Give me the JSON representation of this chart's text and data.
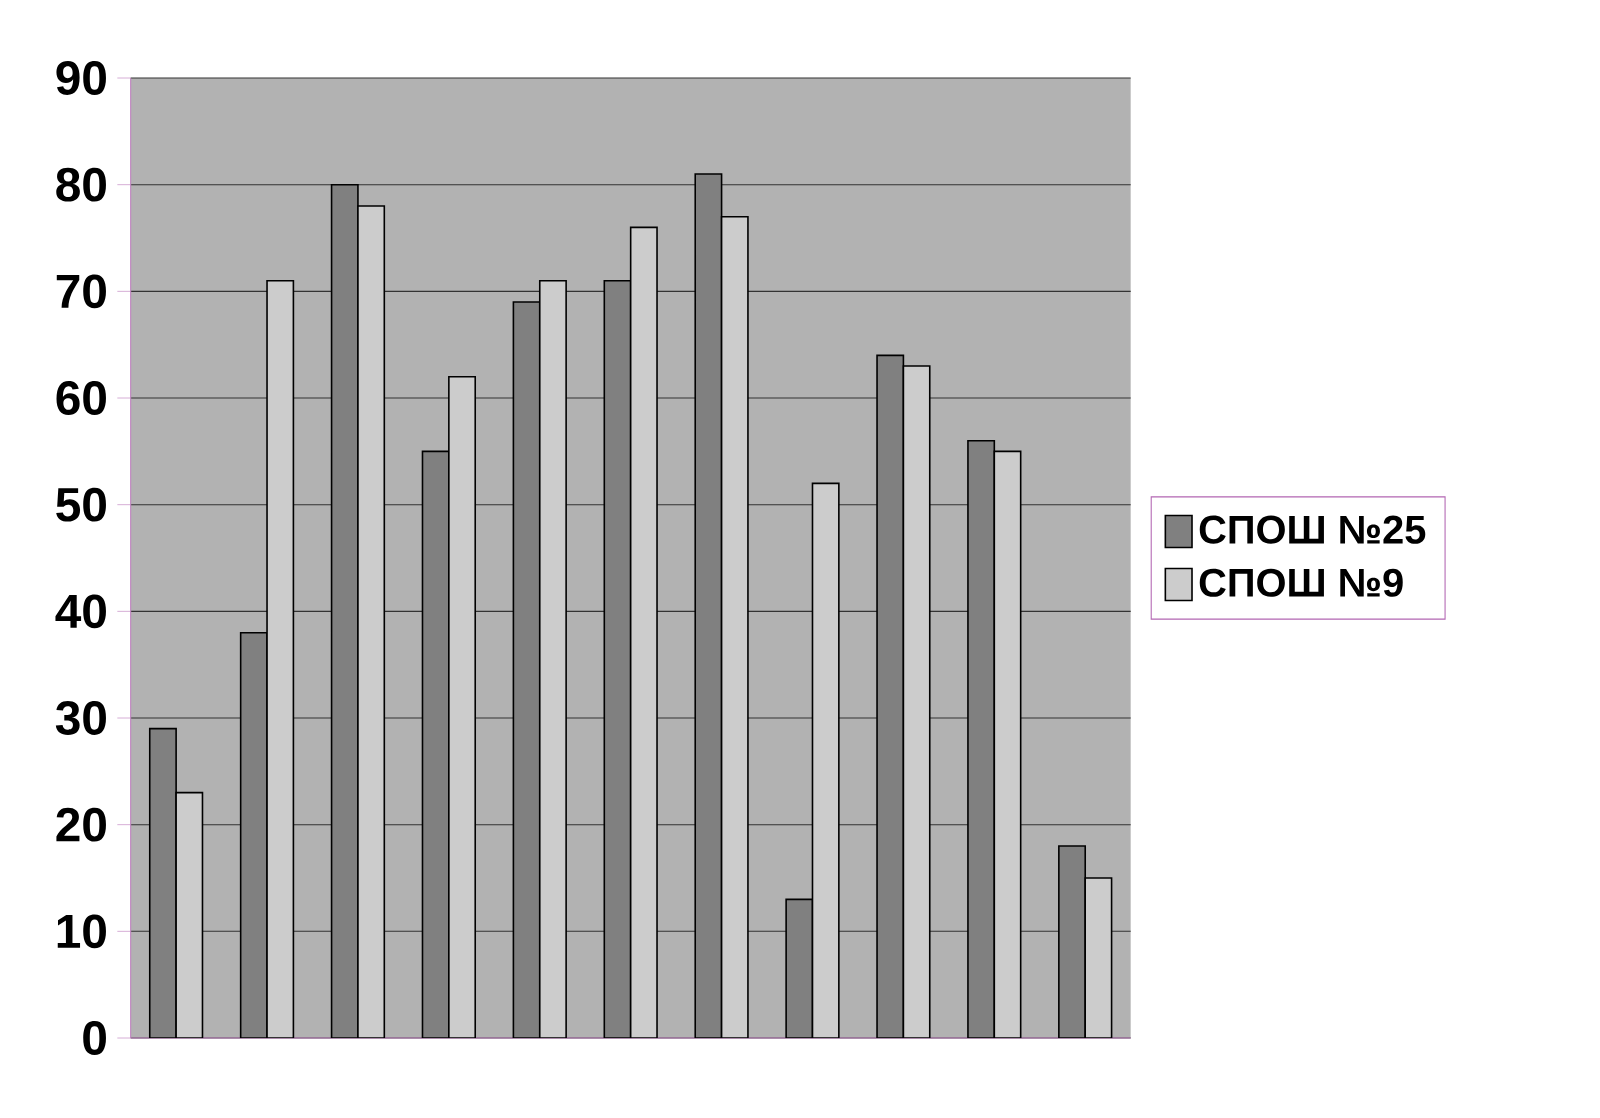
{
  "chart_data": {
    "type": "bar",
    "categories": [
      null,
      null,
      null,
      null,
      null,
      null,
      null,
      null,
      null,
      null,
      null
    ],
    "series": [
      {
        "name": "СПОШ №25",
        "color": "#808080",
        "values": [
          29,
          38,
          80,
          55,
          69,
          71,
          81,
          13,
          64,
          56,
          18
        ]
      },
      {
        "name": "СПОШ №9",
        "color": "#cccccc",
        "values": [
          23,
          71,
          78,
          62,
          71,
          76,
          77,
          52,
          63,
          55,
          15
        ]
      }
    ],
    "ylim": [
      0,
      90
    ],
    "yticks": [
      0,
      10,
      20,
      30,
      40,
      50,
      60,
      70,
      80,
      90
    ],
    "grid": "y",
    "legend": "right"
  }
}
